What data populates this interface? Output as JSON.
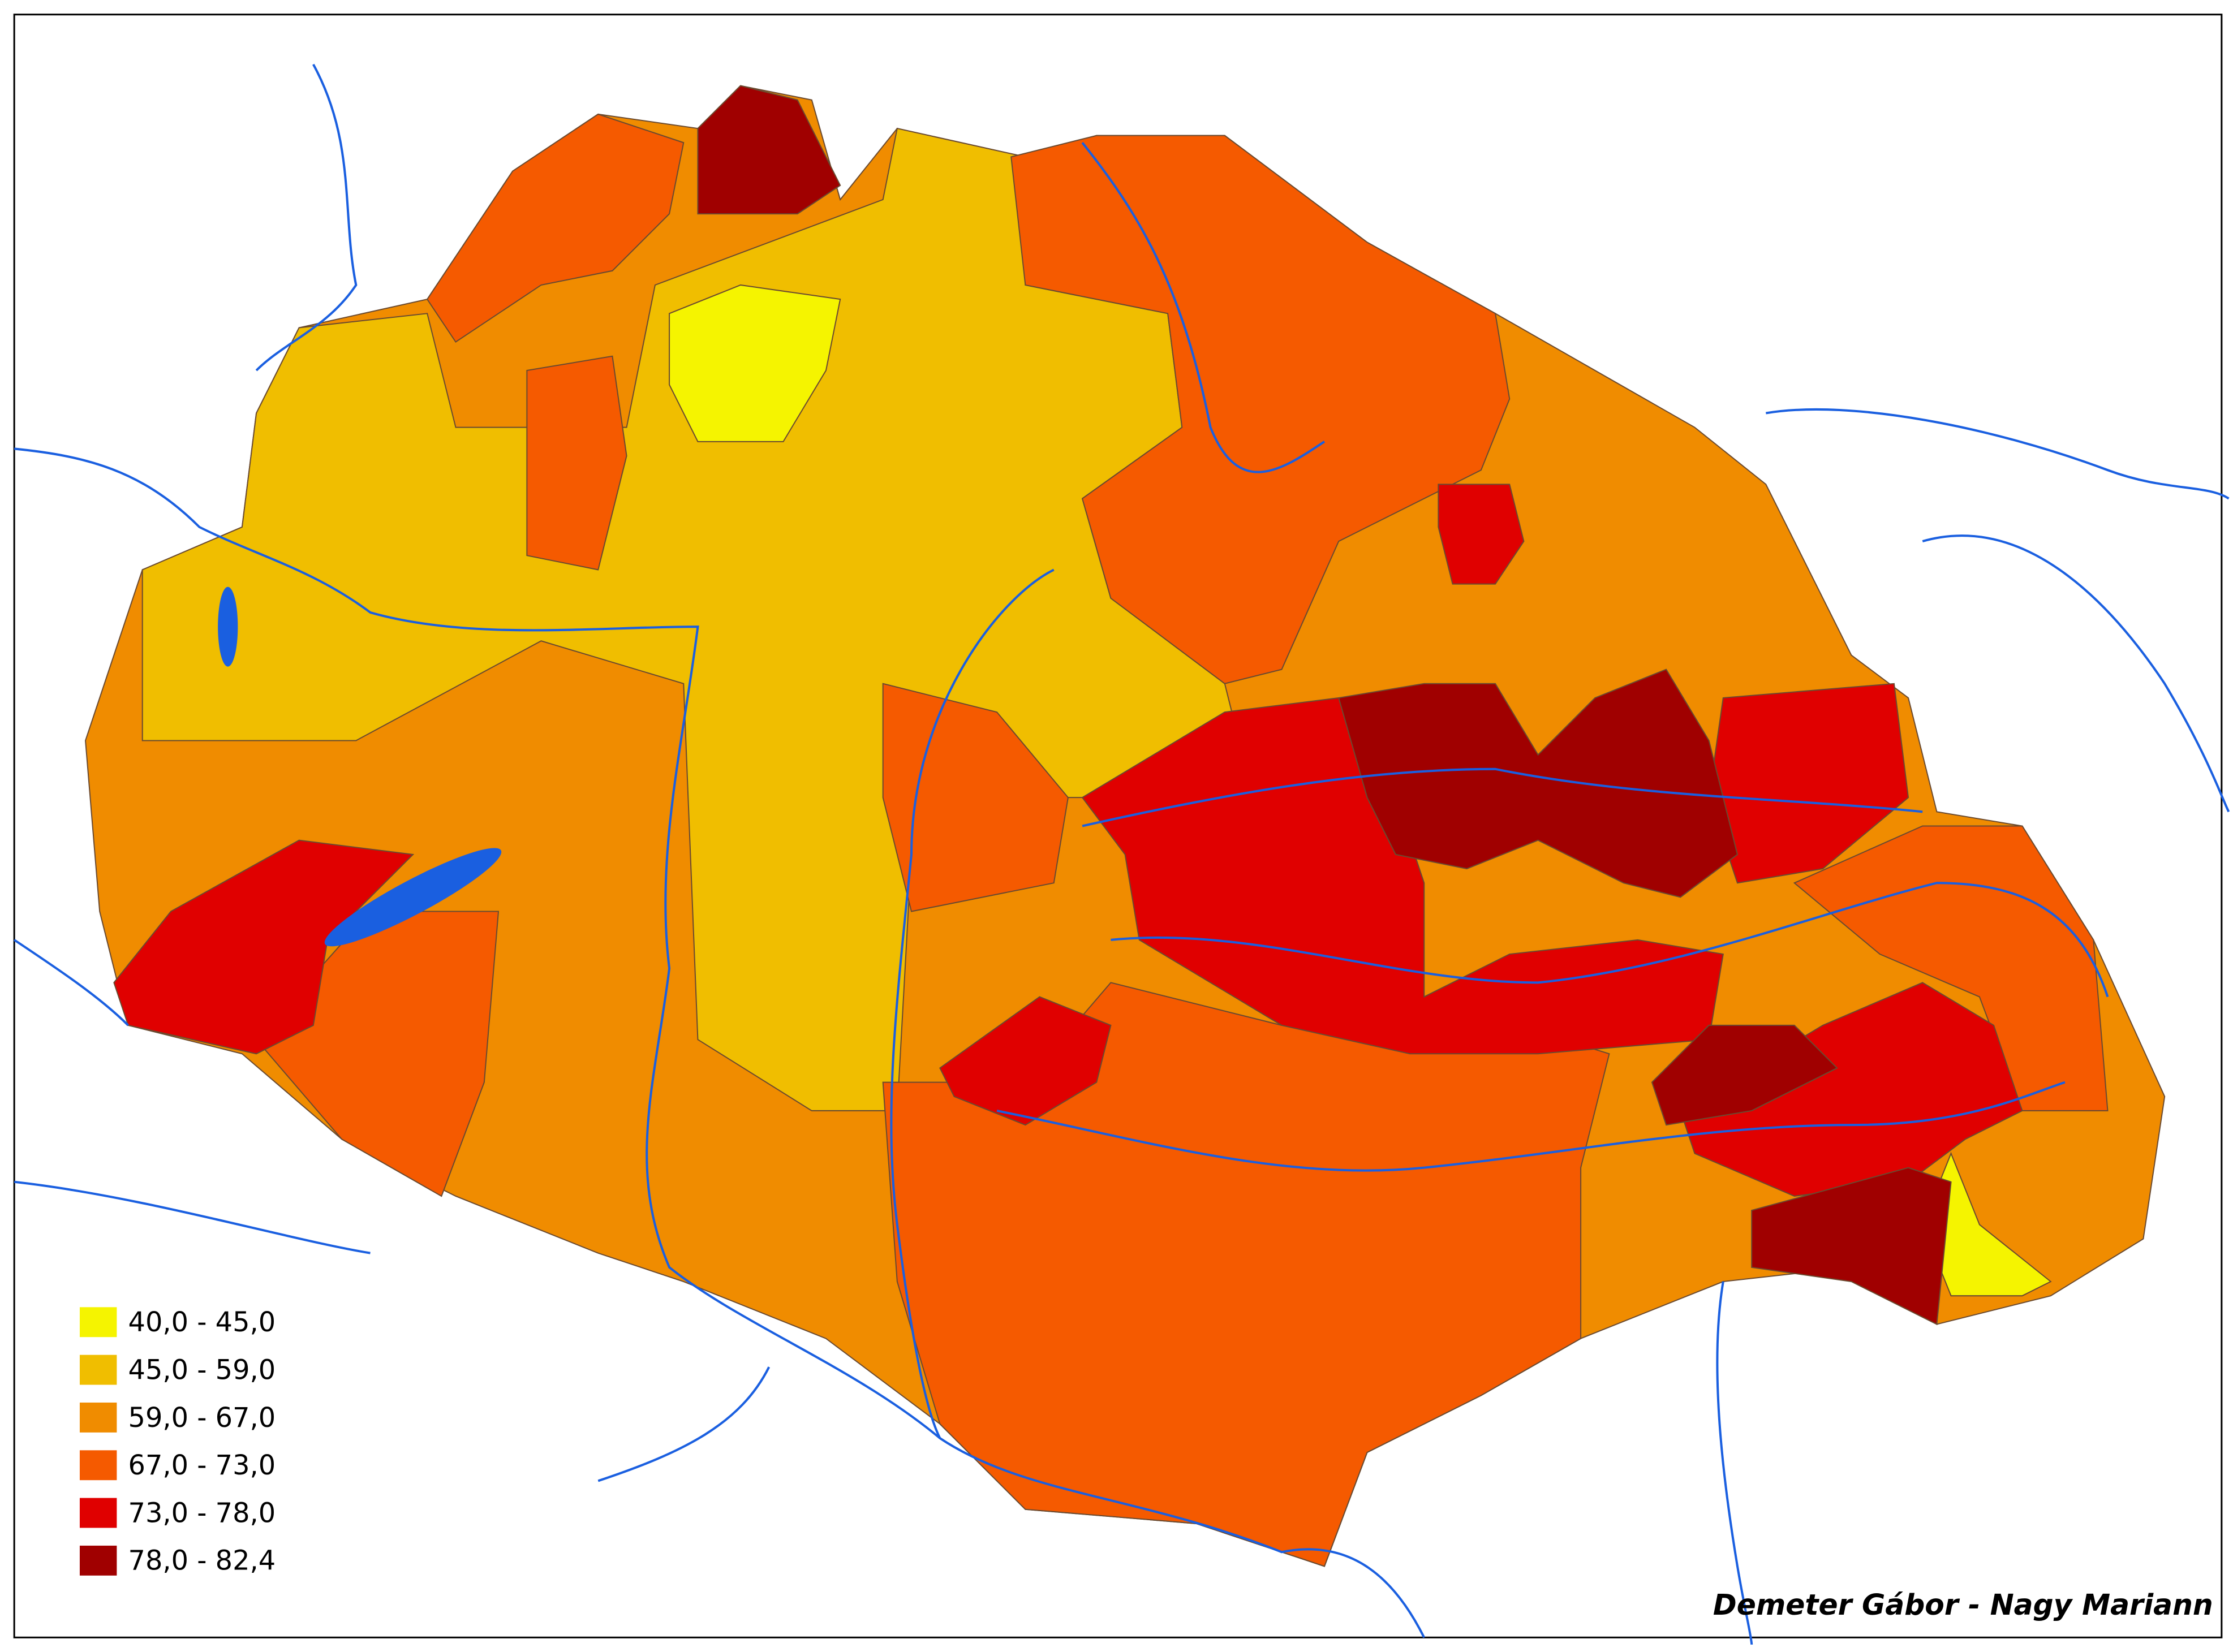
{
  "legend": {
    "items": [
      {
        "label": "40,0 - 45,0",
        "color": "#f5f400"
      },
      {
        "label": "45,0 - 59,0",
        "color": "#f0be00"
      },
      {
        "label": "59,0 - 67,0",
        "color": "#f08c00"
      },
      {
        "label": "67,0 - 73,0",
        "color": "#f55a00"
      },
      {
        "label": "73,0 - 78,0",
        "color": "#e00000"
      },
      {
        "label": "78,0 - 82,4",
        "color": "#a00000"
      }
    ]
  },
  "credit": "Demeter Gábor - Nagy Mariann"
}
